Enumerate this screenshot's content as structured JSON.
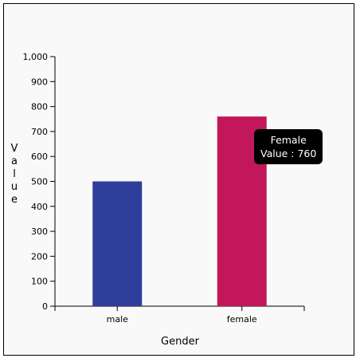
{
  "chart_data": {
    "type": "bar",
    "categories": [
      "male",
      "female"
    ],
    "values": [
      500,
      760
    ],
    "colors": [
      "#2f3d9b",
      "#c2185b"
    ],
    "xlabel": "Gender",
    "ylabel": "Value",
    "ylim": [
      0,
      1000
    ],
    "yticks": [
      "0",
      "100",
      "200",
      "300",
      "400",
      "500",
      "600",
      "700",
      "800",
      "900",
      "1,000"
    ],
    "grid": false,
    "tooltip": {
      "title": "Female",
      "value_text": "Value : 760"
    }
  }
}
